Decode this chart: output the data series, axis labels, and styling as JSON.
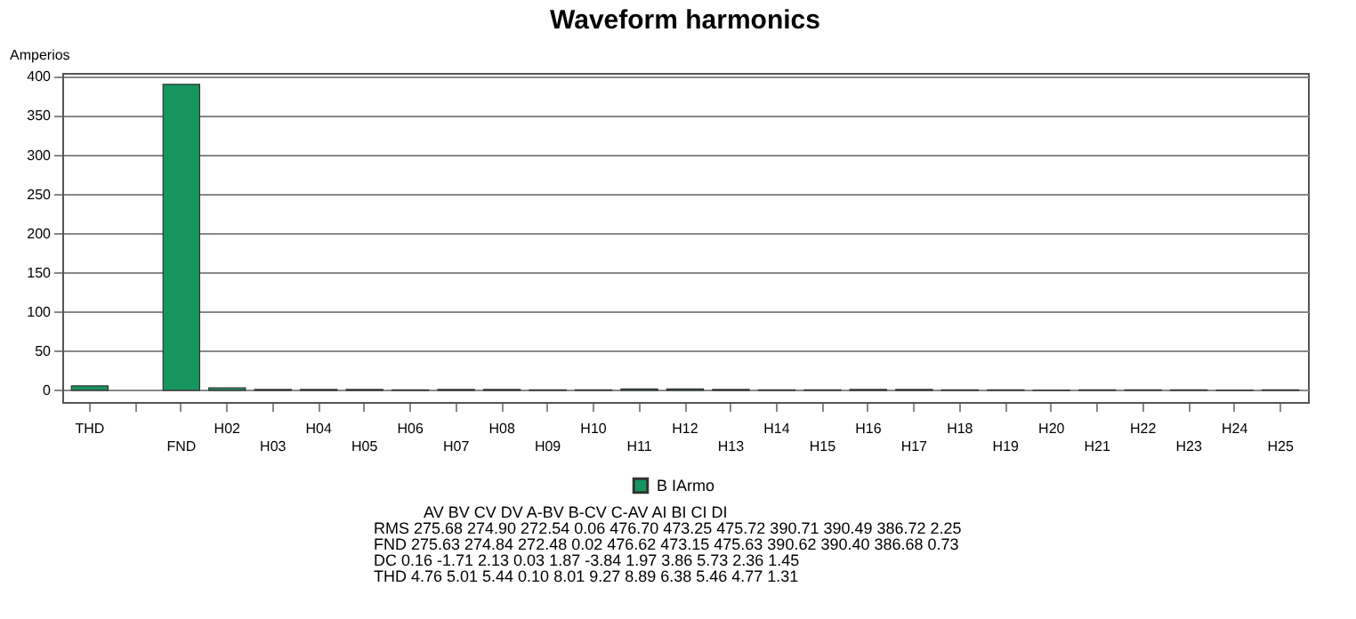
{
  "chart_data": {
    "type": "bar",
    "title": "Waveform harmonics",
    "ylabel": "Amperios",
    "categories": [
      "THD",
      null,
      "FND",
      "H02",
      "H03",
      "H04",
      "H05",
      "H06",
      "H07",
      "H08",
      "H09",
      "H10",
      "H11",
      "H12",
      "H13",
      "H14",
      "H15",
      "H16",
      "H17",
      "H18",
      "H19",
      "H20",
      "H21",
      "H22",
      "H23",
      "H24",
      "H25"
    ],
    "series": [
      {
        "name": "B IArmo",
        "color": "#17955f",
        "values": [
          5.5,
          null,
          390.4,
          3,
          1,
          1,
          1,
          0.5,
          1,
          1,
          0.5,
          0.5,
          1.5,
          1.5,
          1,
          0.5,
          0.5,
          1,
          1,
          0.5,
          0.5,
          0.3,
          0.5,
          0.5,
          0.5,
          0.3,
          0.5
        ]
      }
    ],
    "ylim": [
      -15,
      405
    ],
    "yticks": [
      0,
      50,
      100,
      150,
      200,
      250,
      300,
      350,
      400
    ],
    "grid": "y",
    "legend": "bottom",
    "annotations": [
      "AV BV CV DV A-BV B-CV C-AV AI BI CI DI",
      "RMS 275.68 274.90 272.54 0.06 476.70 473.25 475.72 390.71 390.49 386.72 2.25",
      "FND 275.63 274.84 272.48 0.02 476.62 473.15 475.63 390.62 390.40 386.68 0.73",
      "DC 0.16 -1.71 2.13 0.03 1.87 -3.84 1.97 3.86 5.73 2.36 1.45",
      "THD 4.76 5.01 5.44 0.10 8.01 9.27 8.89 6.38 5.46 4.77 1.31"
    ]
  }
}
